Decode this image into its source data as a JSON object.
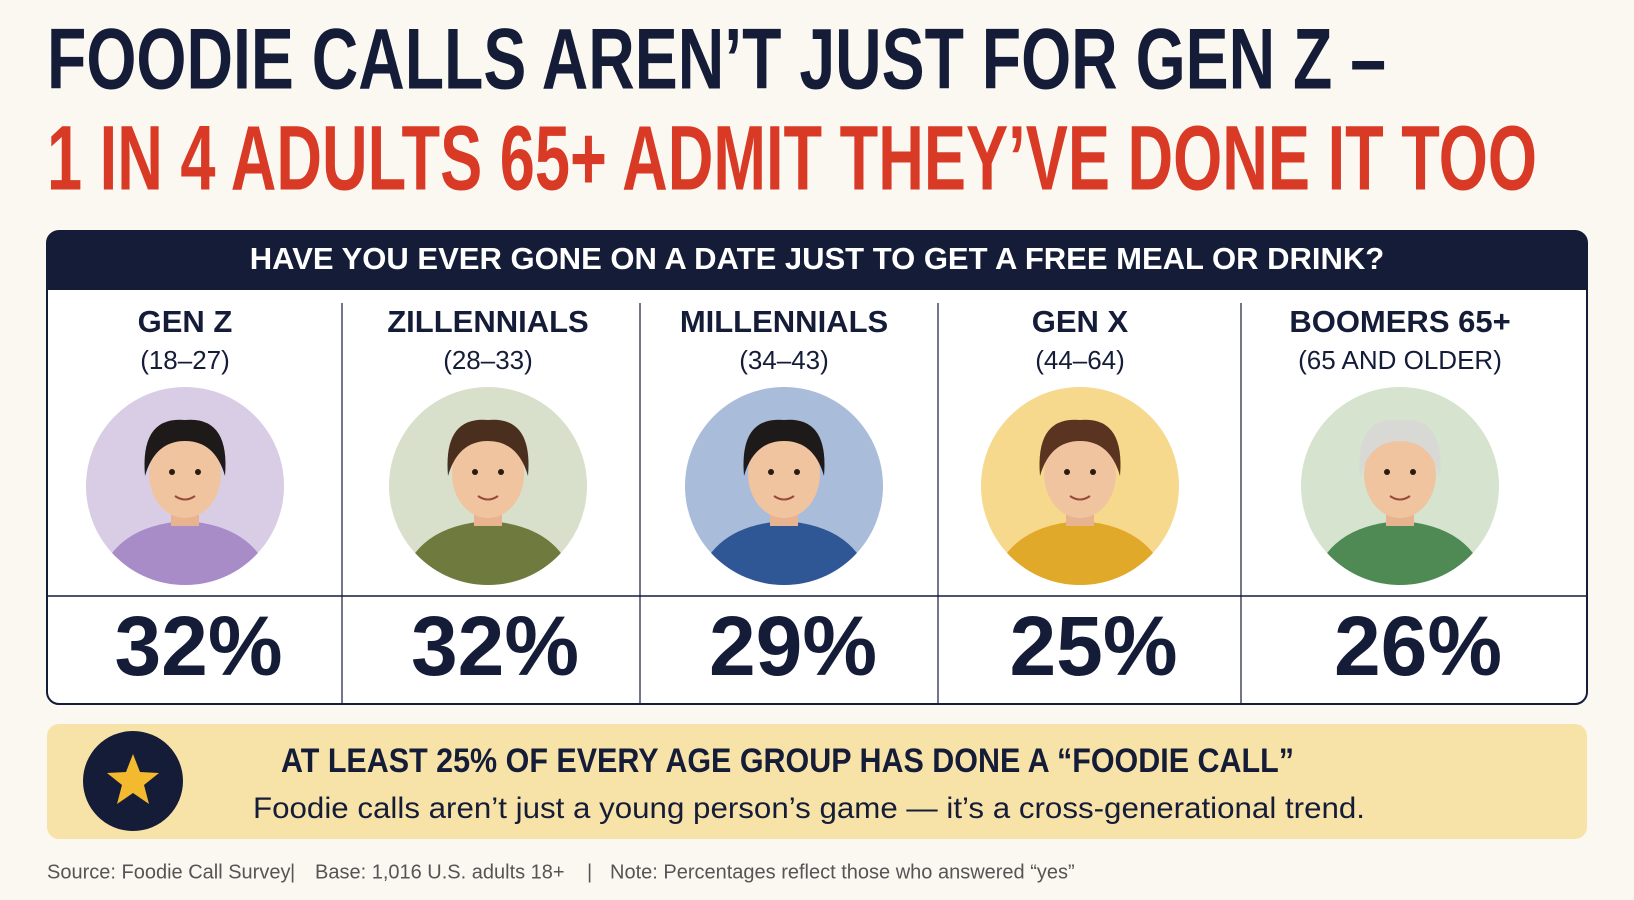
{
  "title": {
    "line1": "FOODIE CALLS AREN’T JUST FOR GEN Z –",
    "line2": "1 IN 4 ADULTS 65+ ADMIT THEY’VE DONE IT TOO"
  },
  "panel": {
    "question": "HAVE YOU EVER GONE ON A DATE JUST TO GET A FREE MEAL OR DRINK?",
    "groups": [
      {
        "name": "GEN Z",
        "range": "(18–27)",
        "percent": "32%"
      },
      {
        "name": "ZILLENNIALS",
        "range": "(28–33)",
        "percent": "32%"
      },
      {
        "name": "MILLENNIALS",
        "range": "(34–43)",
        "percent": "29%"
      },
      {
        "name": "GEN X",
        "range": "(44–64)",
        "percent": "25%"
      },
      {
        "name": "BOOMERS 65+",
        "range": "(65 AND OLDER)",
        "percent": "26%"
      }
    ]
  },
  "callout": {
    "headline": "AT LEAST 25% OF EVERY AGE GROUP HAS DONE A “FOODIE CALL”",
    "text": "Foodie calls aren’t just a young person’s game — it’s a cross-generational trend."
  },
  "footer": {
    "source": "Source:  Foodie Call Survey",
    "base": "Base: 1,016 U.S. adults 18+",
    "note": "Note: Percentages reflect those who answered “yes”"
  }
}
